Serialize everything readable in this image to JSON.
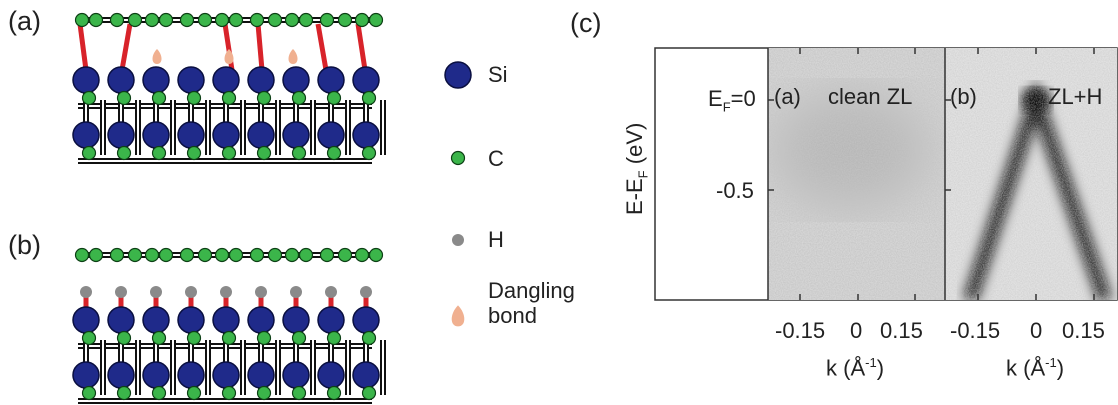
{
  "panel_a": {
    "label": "(a)"
  },
  "panel_b": {
    "label": "(b)"
  },
  "legend": {
    "items": [
      {
        "label": "Si"
      },
      {
        "label": "C"
      },
      {
        "label": "H"
      },
      {
        "label": "Dangling bond"
      }
    ]
  },
  "panel_c": {
    "label": "(c)",
    "y_axis": {
      "label": {
        "main": "E-E",
        "sub": "F",
        "unit": " (eV)"
      },
      "ticks": [
        {
          "main": "E",
          "sub": "F",
          "rest": "=0"
        },
        {
          "main": "-0.5"
        }
      ]
    },
    "image_a": {
      "tag": "(a)",
      "title": "clean ZL",
      "xticks": [
        "-0.15",
        "0",
        "0.15"
      ],
      "xlabel": {
        "main": "k (Å",
        "sup": "-1",
        "end": ")"
      }
    },
    "image_b": {
      "tag": "(b)",
      "title": "ZL+H",
      "xticks": [
        "-0.15",
        "0",
        "0.15"
      ],
      "xlabel": {
        "main": "k (Å",
        "sup": "-1",
        "end": ")"
      }
    }
  }
}
